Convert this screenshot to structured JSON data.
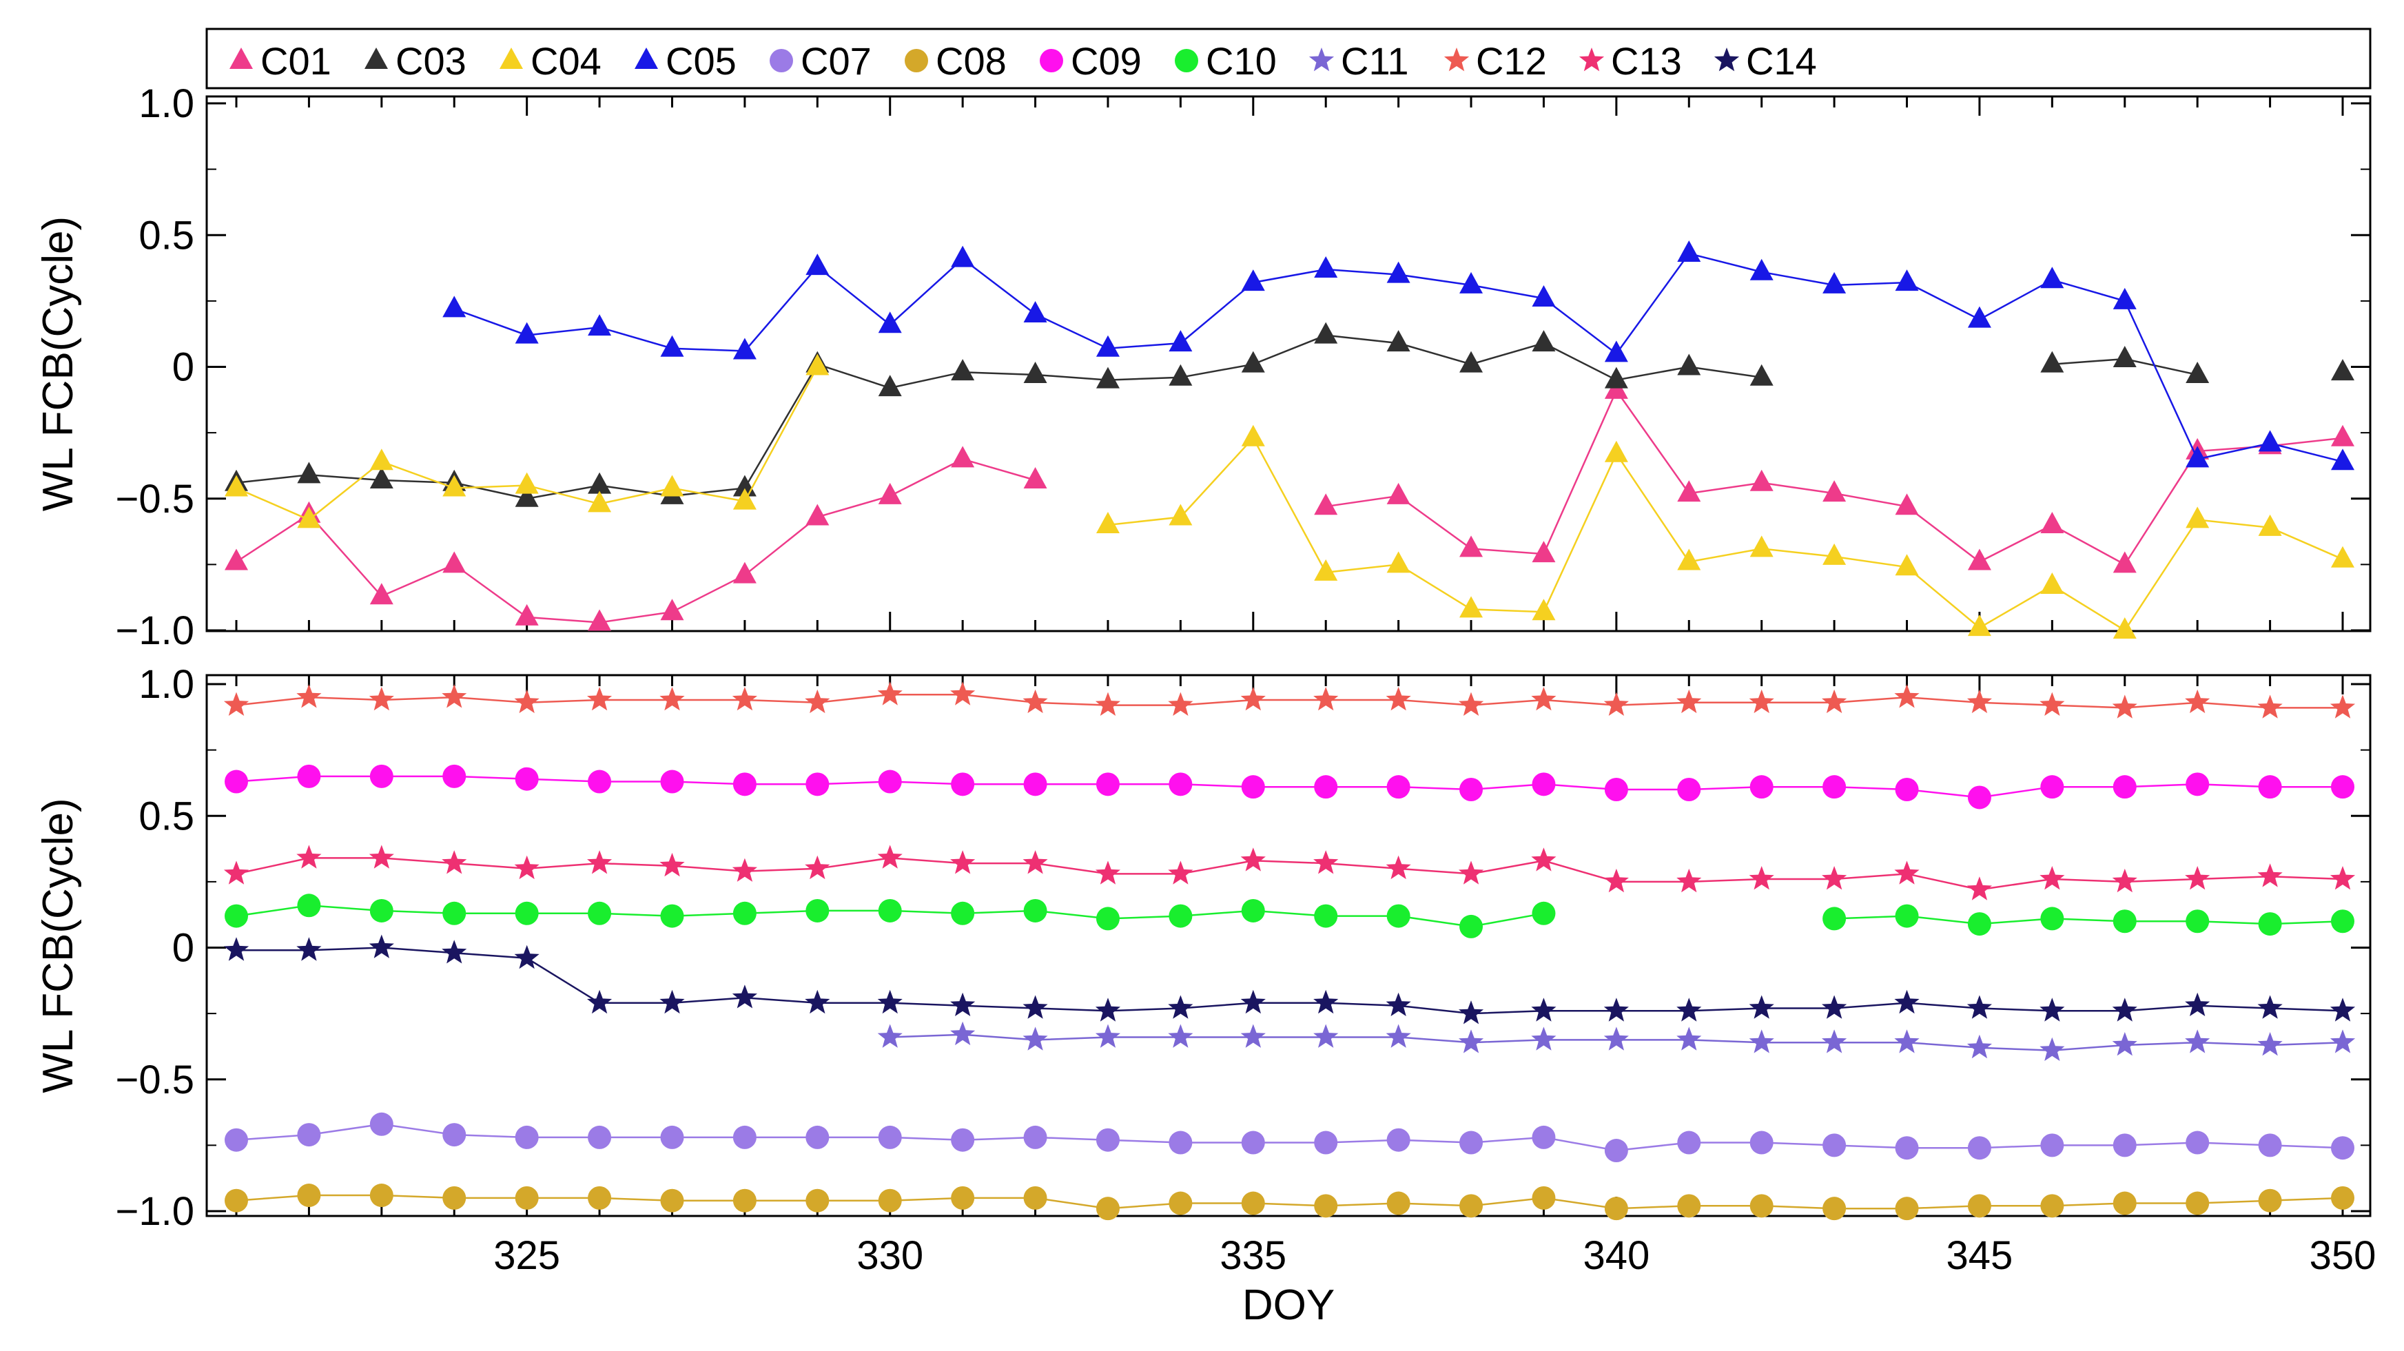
{
  "chart_data": {
    "type": "line",
    "xlabel": "DOY",
    "xlim": [
      321,
      350
    ],
    "x_ticks": [
      325,
      330,
      335,
      340,
      345,
      350
    ],
    "x": [
      321,
      322,
      323,
      324,
      325,
      326,
      327,
      328,
      329,
      330,
      331,
      332,
      333,
      334,
      335,
      336,
      337,
      338,
      339,
      340,
      341,
      342,
      343,
      344,
      345,
      346,
      347,
      348,
      349,
      350
    ],
    "legend": [
      {
        "id": "C01",
        "label": "C01",
        "color": "#ee3b8a",
        "marker": "triangle"
      },
      {
        "id": "C03",
        "label": "C03",
        "color": "#303030",
        "marker": "triangle"
      },
      {
        "id": "C04",
        "label": "C04",
        "color": "#f5d020",
        "marker": "triangle"
      },
      {
        "id": "C05",
        "label": "C05",
        "color": "#1818e6",
        "marker": "triangle"
      },
      {
        "id": "C07",
        "label": "C07",
        "color": "#9b7be6",
        "marker": "circle"
      },
      {
        "id": "C08",
        "label": "C08",
        "color": "#d4a82a",
        "marker": "circle"
      },
      {
        "id": "C09",
        "label": "C09",
        "color": "#ff10ee",
        "marker": "circle"
      },
      {
        "id": "C10",
        "label": "C10",
        "color": "#19ee2e",
        "marker": "circle"
      },
      {
        "id": "C11",
        "label": "C11",
        "color": "#7a66d4",
        "marker": "star"
      },
      {
        "id": "C12",
        "label": "C12",
        "color": "#ee5a52",
        "marker": "star"
      },
      {
        "id": "C13",
        "label": "C13",
        "color": "#ee3072",
        "marker": "star"
      },
      {
        "id": "C14",
        "label": "C14",
        "color": "#1a1560",
        "marker": "star"
      }
    ],
    "panels": [
      {
        "name": "top",
        "ylabel": "WL FCB(Cycle)",
        "ylim": [
          -1.0,
          1.0
        ],
        "y_ticks": [
          -1.0,
          -0.5,
          0,
          0.5,
          1.0
        ],
        "y_tick_labels": [
          "−1.0",
          "−0.5",
          "0",
          "0.5",
          "1.0"
        ],
        "series": [
          {
            "name": "C01",
            "values": [
              -0.74,
              -0.56,
              -0.87,
              -0.75,
              -0.95,
              -0.97,
              -0.93,
              -0.79,
              -0.57,
              -0.49,
              -0.35,
              -0.43,
              null,
              null,
              null,
              -0.53,
              -0.49,
              -0.69,
              -0.71,
              -0.09,
              -0.48,
              -0.44,
              -0.48,
              -0.53,
              -0.74,
              -0.6,
              -0.75,
              -0.32,
              -0.3,
              -0.27
            ]
          },
          {
            "name": "C03",
            "values": [
              -0.44,
              -0.41,
              -0.43,
              -0.44,
              -0.5,
              -0.45,
              -0.49,
              -0.46,
              0.01,
              -0.08,
              -0.02,
              -0.03,
              -0.05,
              -0.04,
              0.01,
              0.12,
              0.09,
              0.01,
              0.09,
              -0.05,
              0.0,
              -0.04,
              null,
              null,
              null,
              0.01,
              0.03,
              -0.03,
              null,
              -0.02
            ]
          },
          {
            "name": "C04",
            "values": [
              -0.46,
              -0.58,
              -0.36,
              -0.46,
              -0.45,
              -0.52,
              -0.46,
              -0.51,
              0.0,
              null,
              null,
              null,
              -0.6,
              -0.57,
              -0.27,
              -0.78,
              -0.75,
              -0.92,
              -0.93,
              -0.33,
              -0.74,
              -0.69,
              -0.72,
              -0.76,
              -0.99,
              -0.83,
              -1.0,
              -0.58,
              -0.61,
              -0.73
            ]
          },
          {
            "name": "C05",
            "values": [
              null,
              null,
              null,
              0.22,
              0.12,
              0.15,
              0.07,
              0.06,
              0.38,
              0.16,
              0.41,
              0.2,
              0.07,
              0.09,
              0.32,
              0.37,
              0.35,
              0.31,
              0.26,
              0.05,
              0.43,
              0.36,
              0.31,
              0.32,
              0.18,
              0.33,
              0.25,
              -0.35,
              -0.29,
              -0.36
            ]
          }
        ]
      },
      {
        "name": "bottom",
        "ylabel": "WL FCB(Cycle)",
        "ylim": [
          -1.0,
          1.0
        ],
        "y_ticks": [
          -1.0,
          -0.5,
          0,
          0.5,
          1.0
        ],
        "y_tick_labels": [
          "−1.0",
          "−0.5",
          "0",
          "0.5",
          "1.0"
        ],
        "series": [
          {
            "name": "C12",
            "values": [
              0.92,
              0.95,
              0.94,
              0.95,
              0.93,
              0.94,
              0.94,
              0.94,
              0.93,
              0.96,
              0.96,
              0.93,
              0.92,
              0.92,
              0.94,
              0.94,
              0.94,
              0.92,
              0.94,
              0.92,
              0.93,
              0.93,
              0.93,
              0.95,
              0.93,
              0.92,
              0.91,
              0.93,
              0.91,
              0.91
            ]
          },
          {
            "name": "C09",
            "values": [
              0.63,
              0.65,
              0.65,
              0.65,
              0.64,
              0.63,
              0.63,
              0.62,
              0.62,
              0.63,
              0.62,
              0.62,
              0.62,
              0.62,
              0.61,
              0.61,
              0.61,
              0.6,
              0.62,
              0.6,
              0.6,
              0.61,
              0.61,
              0.6,
              0.57,
              0.61,
              0.61,
              0.62,
              0.61,
              0.61
            ]
          },
          {
            "name": "C13",
            "values": [
              0.28,
              0.34,
              0.34,
              0.32,
              0.3,
              0.32,
              0.31,
              0.29,
              0.3,
              0.34,
              0.32,
              0.32,
              0.28,
              0.28,
              0.33,
              0.32,
              0.3,
              0.28,
              0.33,
              0.25,
              0.25,
              0.26,
              0.26,
              0.28,
              0.22,
              0.26,
              0.25,
              0.26,
              0.27,
              0.26
            ]
          },
          {
            "name": "C10",
            "values": [
              0.12,
              0.16,
              0.14,
              0.13,
              0.13,
              0.13,
              0.12,
              0.13,
              0.14,
              0.14,
              0.13,
              0.14,
              0.11,
              0.12,
              0.14,
              0.12,
              0.12,
              0.08,
              0.13,
              null,
              null,
              null,
              0.11,
              0.12,
              0.09,
              0.11,
              0.1,
              0.1,
              0.09,
              0.1
            ]
          },
          {
            "name": "C14",
            "values": [
              -0.01,
              -0.01,
              0.0,
              -0.02,
              -0.04,
              -0.21,
              -0.21,
              -0.19,
              -0.21,
              -0.21,
              -0.22,
              -0.23,
              -0.24,
              -0.23,
              -0.21,
              -0.21,
              -0.22,
              -0.25,
              -0.24,
              -0.24,
              -0.24,
              -0.23,
              -0.23,
              -0.21,
              -0.23,
              -0.24,
              -0.24,
              -0.22,
              -0.23,
              -0.24
            ]
          },
          {
            "name": "C11",
            "values": [
              null,
              null,
              null,
              null,
              null,
              null,
              null,
              null,
              null,
              -0.34,
              -0.33,
              -0.35,
              -0.34,
              -0.34,
              -0.34,
              -0.34,
              -0.34,
              -0.36,
              -0.35,
              -0.35,
              -0.35,
              -0.36,
              -0.36,
              -0.36,
              -0.38,
              -0.39,
              -0.37,
              -0.36,
              -0.37,
              -0.36
            ]
          },
          {
            "name": "C07",
            "values": [
              -0.73,
              -0.71,
              -0.67,
              -0.71,
              -0.72,
              -0.72,
              -0.72,
              -0.72,
              -0.72,
              -0.72,
              -0.73,
              -0.72,
              -0.73,
              -0.74,
              -0.74,
              -0.74,
              -0.73,
              -0.74,
              -0.72,
              -0.77,
              -0.74,
              -0.74,
              -0.75,
              -0.76,
              -0.76,
              -0.75,
              -0.75,
              -0.74,
              -0.75,
              -0.76
            ]
          },
          {
            "name": "C08",
            "values": [
              -0.96,
              -0.94,
              -0.94,
              -0.95,
              -0.95,
              -0.95,
              -0.96,
              -0.96,
              -0.96,
              -0.96,
              -0.95,
              -0.95,
              -0.99,
              -0.97,
              -0.97,
              -0.98,
              -0.97,
              -0.98,
              -0.95,
              -0.99,
              -0.98,
              -0.98,
              -0.99,
              -0.99,
              -0.98,
              -0.98,
              -0.97,
              -0.97,
              -0.96,
              -0.95
            ]
          }
        ]
      }
    ]
  }
}
